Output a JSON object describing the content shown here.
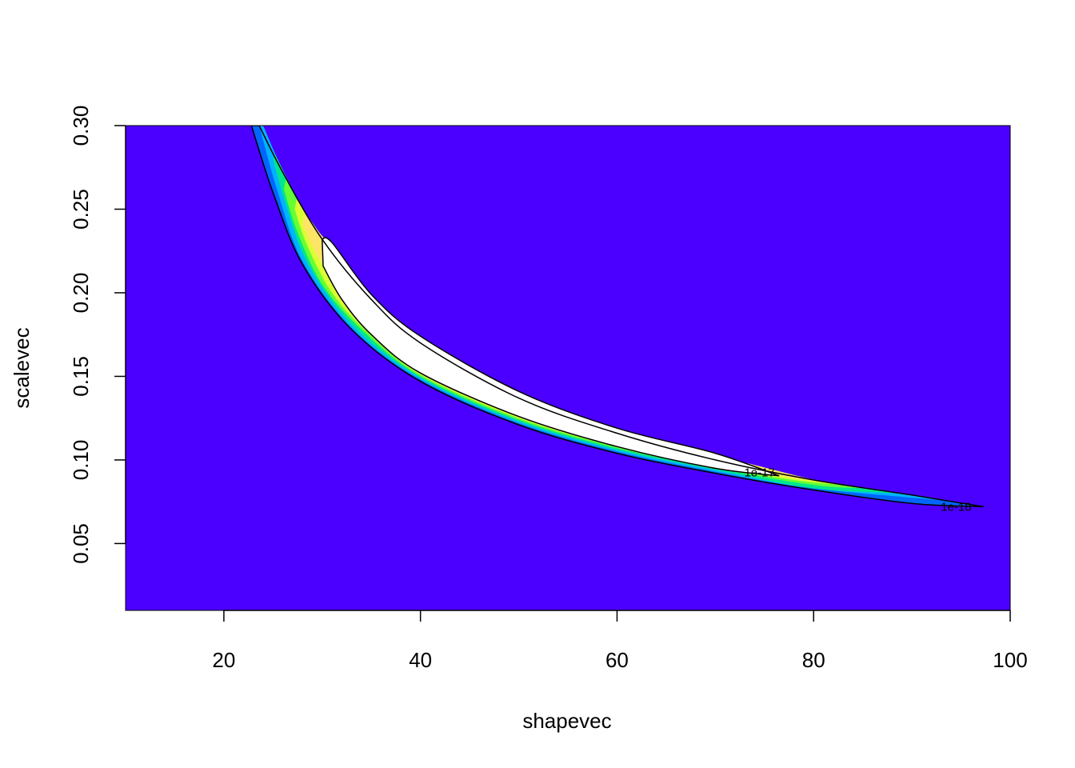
{
  "chart_data": {
    "type": "contour",
    "xlabel": "shapevec",
    "ylabel": "scalevec",
    "xlim": [
      10,
      100
    ],
    "ylim": [
      0.01,
      0.3
    ],
    "x_ticks": [
      {
        "value": 20,
        "label": "20"
      },
      {
        "value": 40,
        "label": "40"
      },
      {
        "value": 60,
        "label": "60"
      },
      {
        "value": 80,
        "label": "80"
      },
      {
        "value": 100,
        "label": "100"
      }
    ],
    "y_ticks": [
      {
        "value": 0.05,
        "label": "0.05"
      },
      {
        "value": 0.1,
        "label": "0.10"
      },
      {
        "value": 0.15,
        "label": "0.15"
      },
      {
        "value": 0.2,
        "label": "0.20"
      },
      {
        "value": 0.25,
        "label": "0.25"
      },
      {
        "value": 0.3,
        "label": "0.30"
      }
    ],
    "colors": {
      "background": "#4B00FF",
      "fill_levels": [
        "#0066FF",
        "#00B3FF",
        "#00E68C",
        "#66FF33",
        "#D9FF33",
        "#FFE566",
        "#FFFFFF"
      ],
      "contour_line": "#000000"
    },
    "contour_lines": [
      {
        "label": "1e-18",
        "label_at": [
          94.5,
          0.072
        ],
        "upper": [
          [
            23.6,
            0.3
          ],
          [
            26,
            0.272
          ],
          [
            30,
            0.232
          ],
          [
            35,
            0.196
          ],
          [
            40,
            0.17
          ],
          [
            50,
            0.137
          ],
          [
            60,
            0.116
          ],
          [
            70,
            0.1
          ],
          [
            80,
            0.088
          ],
          [
            90,
            0.079
          ],
          [
            97.3,
            0.072
          ]
        ],
        "lower": [
          [
            97.3,
            0.072
          ],
          [
            90,
            0.074
          ],
          [
            80,
            0.082
          ],
          [
            70,
            0.092
          ],
          [
            60,
            0.104
          ],
          [
            50,
            0.121
          ],
          [
            40,
            0.147
          ],
          [
            33,
            0.178
          ],
          [
            28,
            0.217
          ],
          [
            25,
            0.26
          ],
          [
            22.8,
            0.3
          ]
        ]
      },
      {
        "label": "1e-17",
        "label_at": [
          74.5,
          0.0925
        ],
        "upper": [
          [
            30.0,
            0.232
          ],
          [
            31,
            0.23
          ],
          [
            35,
            0.199
          ],
          [
            40,
            0.174
          ],
          [
            50,
            0.141
          ],
          [
            60,
            0.119
          ],
          [
            70,
            0.104
          ],
          [
            76.5,
            0.0905
          ]
        ],
        "lower": [
          [
            76.5,
            0.0905
          ],
          [
            70,
            0.095
          ],
          [
            60,
            0.108
          ],
          [
            50,
            0.126
          ],
          [
            40,
            0.152
          ],
          [
            35,
            0.175
          ],
          [
            32,
            0.196
          ],
          [
            30.1,
            0.216
          ]
        ]
      }
    ],
    "filled_bands": [
      {
        "color_index": 0,
        "upper": [
          [
            23.6,
            0.3
          ],
          [
            26,
            0.272
          ],
          [
            30,
            0.232
          ],
          [
            35,
            0.196
          ],
          [
            40,
            0.17
          ],
          [
            50,
            0.137
          ],
          [
            60,
            0.116
          ],
          [
            70,
            0.1
          ],
          [
            80,
            0.088
          ],
          [
            90,
            0.079
          ],
          [
            97.3,
            0.072
          ]
        ],
        "lower": [
          [
            97.3,
            0.072
          ],
          [
            90,
            0.074
          ],
          [
            80,
            0.082
          ],
          [
            70,
            0.092
          ],
          [
            60,
            0.104
          ],
          [
            50,
            0.121
          ],
          [
            40,
            0.147
          ],
          [
            33,
            0.178
          ],
          [
            28,
            0.217
          ],
          [
            25,
            0.26
          ],
          [
            22.8,
            0.3
          ]
        ]
      },
      {
        "color_index": 1,
        "upper": [
          [
            24.0,
            0.3
          ],
          [
            26.2,
            0.271
          ],
          [
            30,
            0.231
          ],
          [
            35,
            0.196
          ],
          [
            40,
            0.17
          ],
          [
            50,
            0.137
          ],
          [
            60,
            0.116
          ],
          [
            70,
            0.1
          ],
          [
            80,
            0.088
          ],
          [
            94,
            0.0755
          ]
        ],
        "lower": [
          [
            94,
            0.0755
          ],
          [
            80,
            0.083
          ],
          [
            70,
            0.093
          ],
          [
            60,
            0.105
          ],
          [
            50,
            0.122
          ],
          [
            40,
            0.148
          ],
          [
            33,
            0.179
          ],
          [
            28,
            0.219
          ],
          [
            25.5,
            0.26
          ],
          [
            23.6,
            0.3
          ]
        ]
      },
      {
        "color_index": 2,
        "upper": [
          [
            25.2,
            0.283
          ],
          [
            27,
            0.262
          ],
          [
            30,
            0.231
          ],
          [
            35,
            0.197
          ],
          [
            40,
            0.171
          ],
          [
            50,
            0.138
          ],
          [
            60,
            0.117
          ],
          [
            70,
            0.101
          ],
          [
            80,
            0.088
          ],
          [
            89,
            0.08
          ]
        ],
        "lower": [
          [
            89,
            0.08
          ],
          [
            80,
            0.083
          ],
          [
            70,
            0.094
          ],
          [
            60,
            0.106
          ],
          [
            50,
            0.123
          ],
          [
            40,
            0.149
          ],
          [
            33,
            0.181
          ],
          [
            28.5,
            0.218
          ],
          [
            26.2,
            0.255
          ],
          [
            25.0,
            0.28
          ]
        ]
      },
      {
        "color_index": 3,
        "upper": [
          [
            26.3,
            0.268
          ],
          [
            28,
            0.25
          ],
          [
            31,
            0.226
          ],
          [
            35,
            0.198
          ],
          [
            40,
            0.172
          ],
          [
            50,
            0.139
          ],
          [
            60,
            0.118
          ],
          [
            70,
            0.102
          ],
          [
            80,
            0.088
          ],
          [
            85.5,
            0.083
          ]
        ],
        "lower": [
          [
            85.5,
            0.083
          ],
          [
            80,
            0.085
          ],
          [
            70,
            0.095
          ],
          [
            60,
            0.107
          ],
          [
            50,
            0.124
          ],
          [
            40,
            0.15
          ],
          [
            34,
            0.178
          ],
          [
            30,
            0.205
          ],
          [
            27.5,
            0.236
          ],
          [
            26.1,
            0.262
          ]
        ]
      },
      {
        "color_index": 4,
        "upper": [
          [
            27.4,
            0.256
          ],
          [
            29,
            0.242
          ],
          [
            31.5,
            0.222
          ],
          [
            35,
            0.199
          ],
          [
            40,
            0.173
          ],
          [
            50,
            0.14
          ],
          [
            60,
            0.119
          ],
          [
            70,
            0.102
          ],
          [
            78,
            0.09
          ],
          [
            83,
            0.085
          ]
        ],
        "lower": [
          [
            83,
            0.085
          ],
          [
            78,
            0.088
          ],
          [
            70,
            0.096
          ],
          [
            60,
            0.108
          ],
          [
            50,
            0.125
          ],
          [
            40,
            0.151
          ],
          [
            34.5,
            0.177
          ],
          [
            31,
            0.2
          ],
          [
            28.5,
            0.228
          ],
          [
            27.2,
            0.25
          ]
        ]
      },
      {
        "color_index": 5,
        "upper": [
          [
            28.2,
            0.247
          ],
          [
            30,
            0.234
          ],
          [
            33,
            0.213
          ],
          [
            36,
            0.193
          ],
          [
            40,
            0.174
          ],
          [
            45,
            0.155
          ]
        ],
        "lower": [
          [
            45,
            0.145
          ],
          [
            40,
            0.16
          ],
          [
            36,
            0.178
          ],
          [
            32,
            0.202
          ],
          [
            29.5,
            0.222
          ],
          [
            28.0,
            0.241
          ]
        ]
      },
      {
        "color_index": 5,
        "upper": [
          [
            70,
            0.102
          ],
          [
            74,
            0.097
          ],
          [
            78,
            0.091
          ],
          [
            81,
            0.087
          ]
        ],
        "lower": [
          [
            81,
            0.087
          ],
          [
            78,
            0.089
          ],
          [
            74,
            0.094
          ],
          [
            70,
            0.097
          ]
        ]
      }
    ],
    "white_region": {
      "upper": [
        [
          30.0,
          0.232
        ],
        [
          31,
          0.23
        ],
        [
          35,
          0.199
        ],
        [
          40,
          0.174
        ],
        [
          50,
          0.141
        ],
        [
          60,
          0.119
        ],
        [
          70,
          0.104
        ],
        [
          76.5,
          0.0905
        ]
      ],
      "lower": [
        [
          76.5,
          0.0905
        ],
        [
          70,
          0.095
        ],
        [
          60,
          0.108
        ],
        [
          50,
          0.126
        ],
        [
          40,
          0.152
        ],
        [
          35,
          0.175
        ],
        [
          32,
          0.196
        ],
        [
          30.1,
          0.216
        ]
      ]
    },
    "grid": false,
    "legend": "none"
  }
}
